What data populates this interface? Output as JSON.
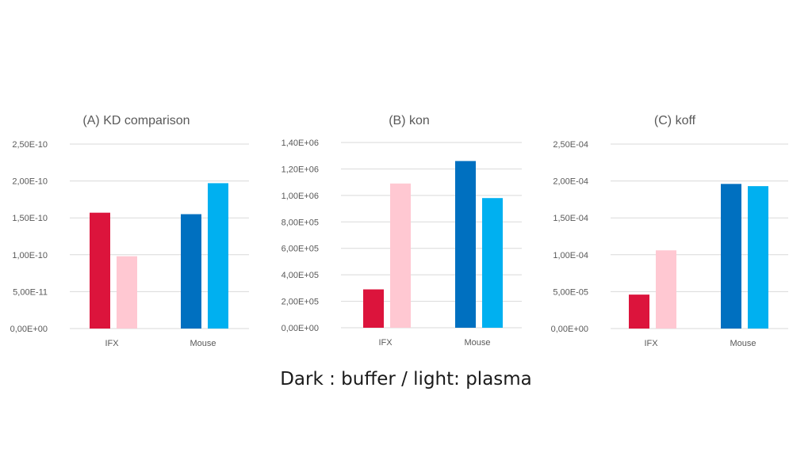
{
  "caption": "Dark : buffer / light: plasma",
  "colors": {
    "IFX_buffer": "#dc143c",
    "IFX_plasma": "#ffc8d2",
    "Mouse_buffer": "#0070c0",
    "Mouse_plasma": "#00b0f0"
  },
  "chart_data": [
    {
      "type": "bar",
      "title": "(A) KD comparison",
      "categories": [
        "IFX",
        "Mouse"
      ],
      "series": [
        {
          "values": [
            1.57e-10,
            1.55e-10
          ]
        },
        {
          "values": [
            9.8e-11,
            1.97e-10
          ]
        }
      ],
      "ylim": [
        0,
        2.5e-10
      ],
      "yticks": [
        "0,00E+00",
        "5,00E-11",
        "1,00E-10",
        "1,50E-10",
        "2,00E-10",
        "2,50E-10"
      ],
      "grid": true
    },
    {
      "type": "bar",
      "title": "(B) kon",
      "categories": [
        "IFX",
        "Mouse"
      ],
      "series": [
        {
          "values": [
            290000,
            1260000
          ]
        },
        {
          "values": [
            1090000,
            980000
          ]
        }
      ],
      "ylim": [
        0,
        1400000
      ],
      "yticks": [
        "0,00E+00",
        "2,00E+05",
        "4,00E+05",
        "6,00E+05",
        "8,00E+05",
        "1,00E+06",
        "1,20E+06",
        "1,40E+06"
      ],
      "grid": true
    },
    {
      "type": "bar",
      "title": "(C) koff",
      "categories": [
        "IFX",
        "Mouse"
      ],
      "series": [
        {
          "values": [
            4.6e-05,
            0.000196
          ]
        },
        {
          "values": [
            0.000106,
            0.000193
          ]
        }
      ],
      "ylim": [
        0,
        0.00025
      ],
      "yticks": [
        "0,00E+00",
        "5,00E-05",
        "1,00E-04",
        "1,50E-04",
        "2,00E-04",
        "2,50E-04"
      ],
      "grid": true
    }
  ]
}
